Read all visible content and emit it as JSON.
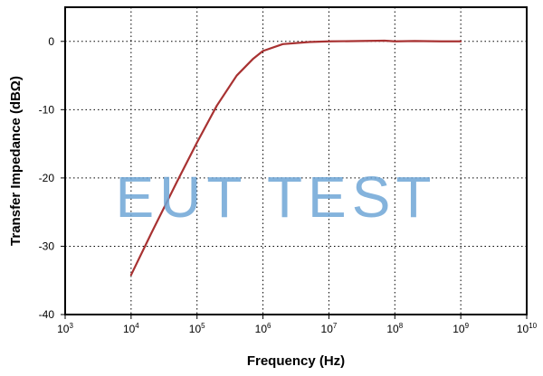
{
  "chart_data": {
    "type": "line",
    "title": "",
    "xlabel": "Frequency (Hz)",
    "ylabel": "Transfer Impedance (dBΩ)",
    "x_scale": "log",
    "xlim": [
      1000,
      10000000000
    ],
    "ylim": [
      -40,
      5
    ],
    "x_ticks": [
      {
        "value": 1000,
        "base": "10",
        "exp": "3"
      },
      {
        "value": 10000,
        "base": "10",
        "exp": "4"
      },
      {
        "value": 100000,
        "base": "10",
        "exp": "5"
      },
      {
        "value": 1000000,
        "base": "10",
        "exp": "6"
      },
      {
        "value": 10000000,
        "base": "10",
        "exp": "7"
      },
      {
        "value": 100000000,
        "base": "10",
        "exp": "8"
      },
      {
        "value": 1000000000,
        "base": "10",
        "exp": "9"
      },
      {
        "value": 10000000000,
        "base": "10",
        "exp": "10"
      }
    ],
    "y_ticks": [
      {
        "value": 0,
        "label": "0"
      },
      {
        "value": -10,
        "label": "-10"
      },
      {
        "value": -20,
        "label": "-20"
      },
      {
        "value": -30,
        "label": "-30"
      },
      {
        "value": -40,
        "label": "-40"
      }
    ],
    "grid": true,
    "grid_style": "dotted",
    "series": [
      {
        "color": "#a83232",
        "x": [
          10000,
          20000,
          50000,
          100000,
          200000,
          400000,
          700000,
          1000000,
          2000000,
          5000000,
          10000000,
          30000000,
          70000000,
          100000000,
          200000000,
          500000000,
          1000000000
        ],
        "y": [
          -34.2,
          -28.2,
          -20.5,
          -14.8,
          -9.4,
          -5.0,
          -2.6,
          -1.4,
          -0.4,
          -0.1,
          0.0,
          0.05,
          0.1,
          0.0,
          0.05,
          0.0,
          0.0
        ]
      }
    ]
  },
  "watermark": {
    "text": "EUT TEST",
    "color": "#6fa6d6"
  }
}
